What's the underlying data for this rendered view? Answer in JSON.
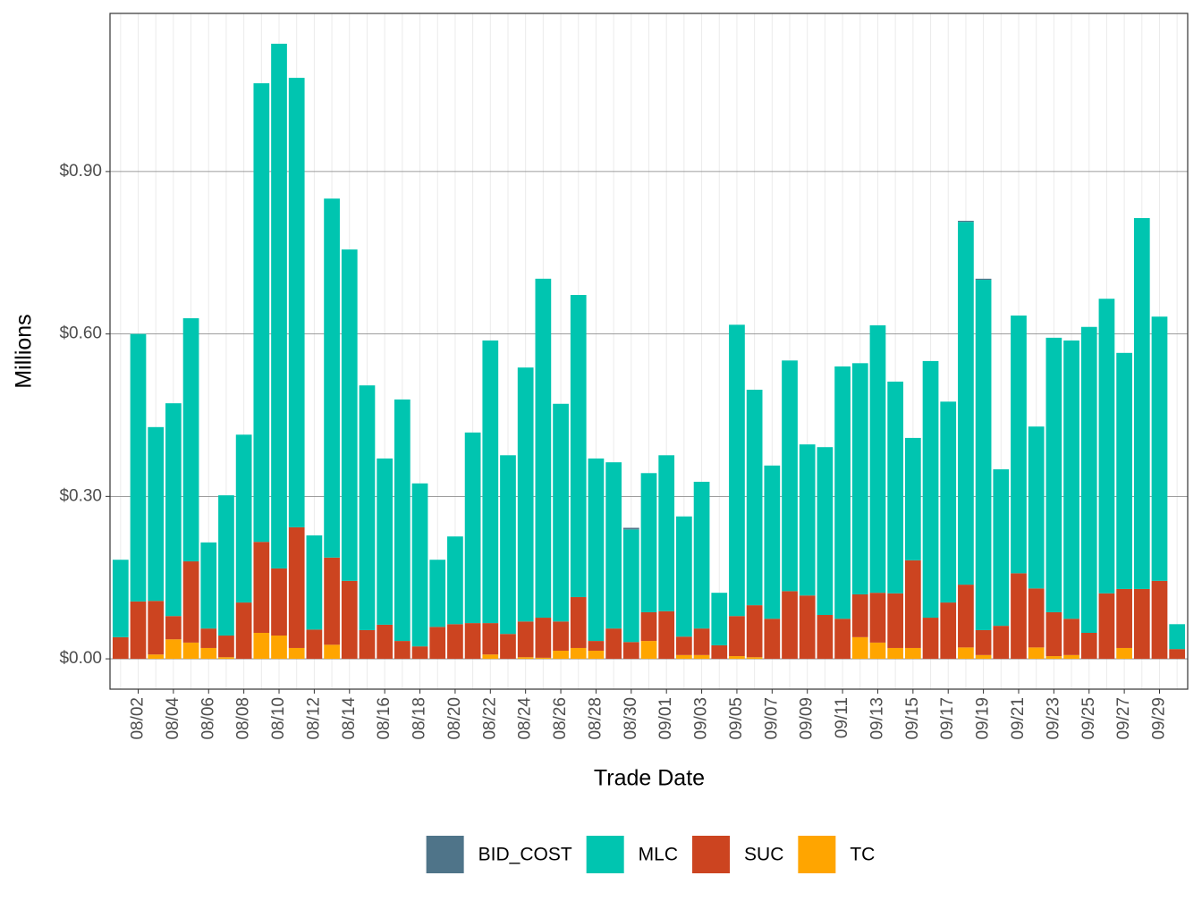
{
  "chart_data": {
    "type": "stacked_bar",
    "x_label": "Trade Date",
    "y_label": "Millions",
    "categories": [
      null,
      "08/02",
      null,
      "08/04",
      null,
      "08/06",
      null,
      "08/08",
      null,
      "08/10",
      null,
      "08/12",
      null,
      "08/14",
      null,
      "08/16",
      null,
      "08/18",
      null,
      "08/20",
      null,
      "08/22",
      null,
      "08/24",
      null,
      "08/26",
      null,
      "08/28",
      null,
      "08/30",
      null,
      "09/01",
      null,
      "09/03",
      null,
      "09/05",
      null,
      "09/07",
      null,
      "09/09",
      null,
      "09/11",
      null,
      "09/13",
      null,
      "09/15",
      null,
      "09/17",
      null,
      "09/19",
      null,
      "09/21",
      null,
      "09/23",
      null,
      "09/25",
      null,
      "09/27",
      null,
      "09/29",
      null
    ],
    "series": [
      {
        "name": "TC",
        "color": "#ffa500",
        "values": [
          0,
          0,
          0.008,
          0.036,
          0.03,
          0.02,
          0.003,
          0,
          0.048,
          0.043,
          0.02,
          0,
          0.026,
          0,
          0,
          0,
          0,
          0,
          0,
          0,
          0,
          0.008,
          0,
          0.003,
          0.002,
          0.015,
          0.02,
          0.015,
          0,
          0,
          0.033,
          0,
          0.007,
          0.007,
          0,
          0.005,
          0.003,
          0,
          0,
          0,
          0,
          0,
          0.04,
          0.03,
          0.02,
          0.02,
          0,
          0,
          0.021,
          0.007,
          0,
          0,
          0.021,
          0.005,
          0.007,
          0,
          0,
          0.02,
          0,
          0,
          0
        ]
      },
      {
        "name": "SUC",
        "color": "#cc4420",
        "values": [
          0.04,
          0.106,
          0.099,
          0.043,
          0.15,
          0.036,
          0.04,
          0.104,
          0.168,
          0.124,
          0.223,
          0.054,
          0.161,
          0.144,
          0.053,
          0.063,
          0.033,
          0.023,
          0.059,
          0.064,
          0.066,
          0.058,
          0.046,
          0.066,
          0.074,
          0.054,
          0.094,
          0.018,
          0.056,
          0.031,
          0.053,
          0.088,
          0.034,
          0.049,
          0.025,
          0.074,
          0.096,
          0.074,
          0.125,
          0.117,
          0.081,
          0.074,
          0.079,
          0.092,
          0.101,
          0.162,
          0.076,
          0.104,
          0.116,
          0.046,
          0.061,
          0.158,
          0.109,
          0.081,
          0.067,
          0.048,
          0.121,
          0.109,
          0.129,
          0.144,
          0.018
        ]
      },
      {
        "name": "MLC",
        "color": "#00c5b0",
        "values": [
          0.143,
          0.494,
          0.321,
          0.393,
          0.449,
          0.159,
          0.259,
          0.31,
          0.847,
          0.969,
          0.83,
          0.174,
          0.663,
          0.612,
          0.452,
          0.307,
          0.446,
          0.301,
          0.124,
          0.162,
          0.352,
          0.522,
          0.33,
          0.469,
          0.626,
          0.402,
          0.558,
          0.337,
          0.307,
          0.208,
          0.257,
          0.288,
          0.222,
          0.271,
          0.097,
          0.538,
          0.398,
          0.283,
          0.426,
          0.279,
          0.31,
          0.466,
          0.427,
          0.494,
          0.391,
          0.226,
          0.474,
          0.371,
          0.67,
          0.647,
          0.289,
          0.476,
          0.299,
          0.507,
          0.514,
          0.565,
          0.544,
          0.436,
          0.685,
          0.488,
          0.046
        ]
      },
      {
        "name": "BID_COST",
        "color": "#4f7489",
        "values": [
          0,
          0,
          0,
          0,
          0,
          0,
          0,
          0,
          0,
          0,
          0,
          0,
          0,
          0,
          0,
          0,
          0,
          0,
          0,
          0,
          0,
          0,
          0,
          0,
          0,
          0,
          0,
          0,
          0,
          0.003,
          0,
          0,
          0,
          0,
          0,
          0,
          0,
          0,
          0,
          0,
          0,
          0,
          0,
          0,
          0,
          0,
          0,
          0,
          0.002,
          0.002,
          0,
          0,
          0,
          0,
          0,
          0,
          0,
          0,
          0,
          0,
          0
        ]
      }
    ],
    "legend_order": [
      "BID_COST",
      "MLC",
      "SUC",
      "TC"
    ],
    "ylim": [
      -0.056,
      1.192
    ],
    "yticks": [
      {
        "value": 0,
        "label": "$0.00"
      },
      {
        "value": 0.3,
        "label": "$0.30"
      },
      {
        "value": 0.6,
        "label": "$0.60"
      },
      {
        "value": 0.9,
        "label": "$0.90"
      }
    ],
    "grid": true,
    "legend_position": "bottom"
  }
}
